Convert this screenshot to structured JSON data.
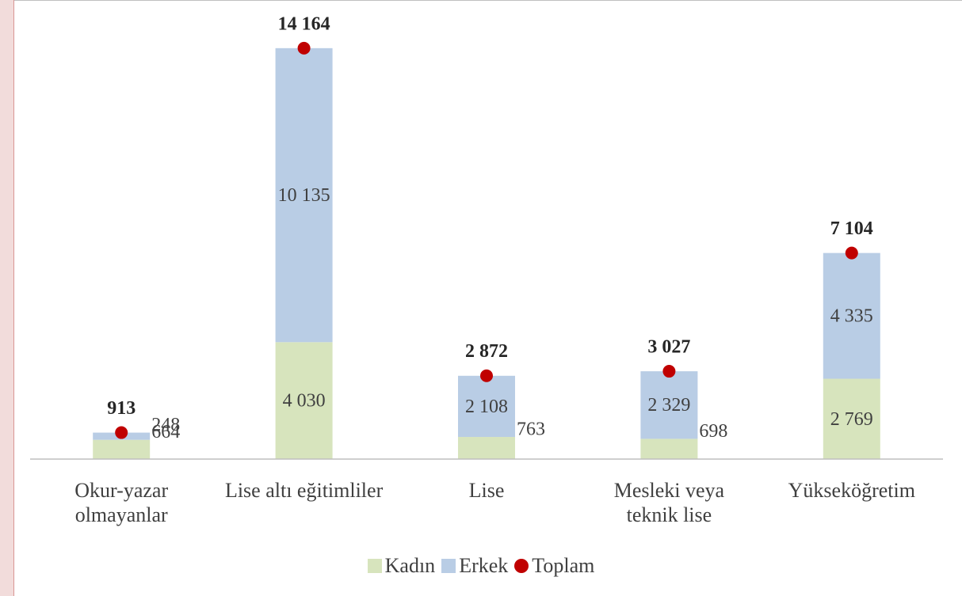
{
  "chart_data": {
    "type": "stacked-bar",
    "categories": [
      "Okur-yazar olmayanlar",
      "Lise altı eğitimliler",
      "Lise",
      "Mesleki veya teknik lise",
      "Yükseköğretim"
    ],
    "series": [
      {
        "name": "Kadın",
        "color": "#d7e4bd",
        "values": [
          664,
          4030,
          763,
          698,
          2769
        ],
        "value_labels": [
          "664",
          "4 030",
          "763",
          "698",
          "2 769"
        ]
      },
      {
        "name": "Erkek",
        "color": "#b9cde5",
        "values": [
          248,
          10135,
          2108,
          2329,
          4335
        ],
        "value_labels": [
          "248",
          "10 135",
          "2 108",
          "2 329",
          "4 335"
        ]
      },
      {
        "name": "Toplam",
        "type": "point",
        "color": "#c00000",
        "values": [
          913,
          14164,
          2872,
          3027,
          7104
        ],
        "value_labels": [
          "913",
          "14 164",
          "2 872",
          "3 027",
          "7 104"
        ]
      }
    ]
  }
}
